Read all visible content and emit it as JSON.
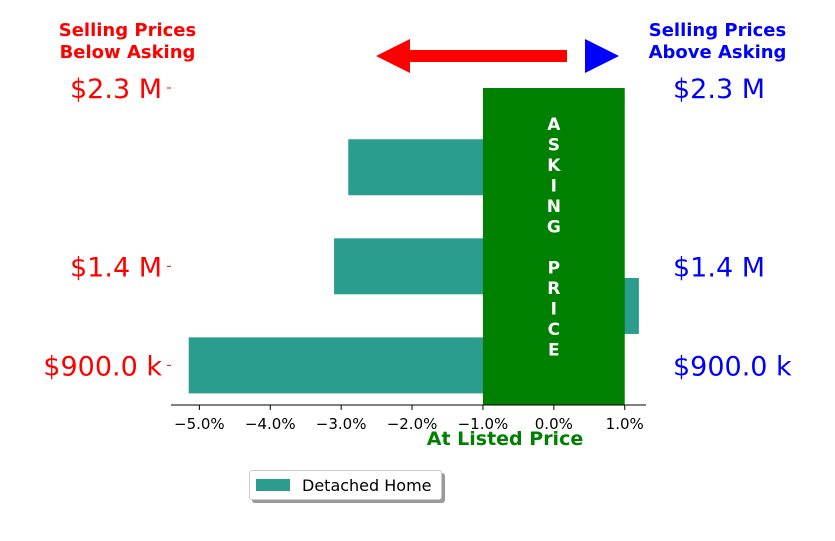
{
  "header_left": {
    "line1": "Selling Prices",
    "line2": "Below Asking",
    "color": "#ff0000"
  },
  "header_right": {
    "line1": "Selling Prices",
    "line2": "Above Asking",
    "color": "#0000ff"
  },
  "colors": {
    "bar": "#2a9d8f",
    "asking_band": "#008000",
    "left_arrow": "#ff0000",
    "right_arrow": "#0000ff",
    "left_labels": "#ff0000",
    "right_labels": "#0000ff",
    "asking_text": "#ffffff",
    "xlabel": "#008000"
  },
  "chart_data": {
    "type": "bar",
    "orientation": "horizontal",
    "categories": [
      "$900.0 k",
      "$1.4 M",
      "$2.3 M"
    ],
    "price_levels": [
      900000,
      1400000,
      2300000
    ],
    "series": [
      {
        "name": "Detached Home",
        "bars": [
          {
            "price": 900000,
            "value": -5.15
          },
          {
            "price": 1200000,
            "value": 1.2
          },
          {
            "price": 1400000,
            "value": -3.1
          },
          {
            "price": 1900000,
            "value": -2.9
          }
        ]
      }
    ],
    "ylim": [
      700000,
      2300000
    ],
    "xlim": [
      -5.4,
      1.3
    ],
    "xticks": [
      "−5.0%",
      "−4.0%",
      "−3.0%",
      "−2.0%",
      "−1.0%",
      "0.0%",
      "1.0%"
    ],
    "xtick_values": [
      -5,
      -4,
      -3,
      -2,
      -1,
      0,
      1
    ],
    "xlabel": "At Listed Price",
    "band": {
      "x_from": -1.0,
      "x_to": 1.0,
      "text": "ASKING PRICE"
    },
    "legend": {
      "entries": [
        "Detached Home"
      ],
      "position": "bottom"
    }
  }
}
